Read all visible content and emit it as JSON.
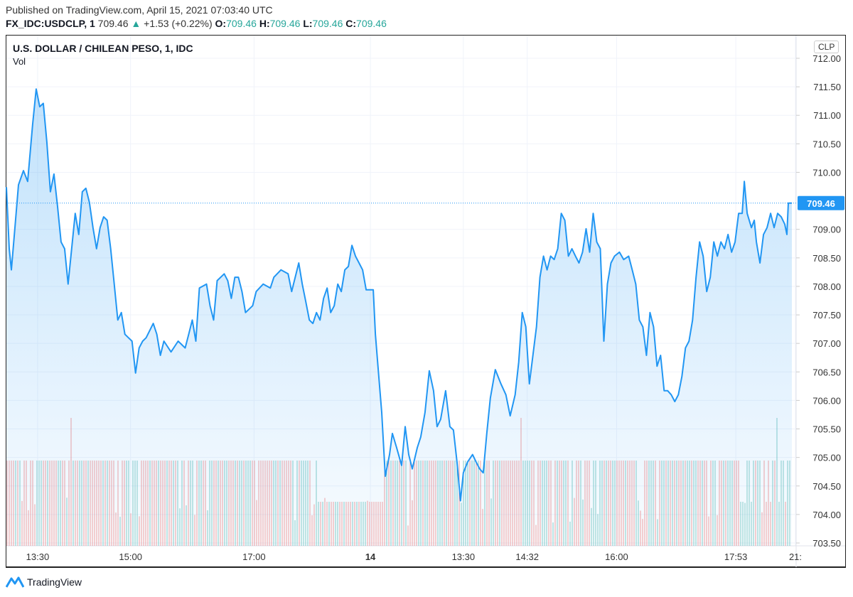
{
  "header": {
    "published": "Published on TradingView.com, April 15, 2021 07:03:40 UTC",
    "symbol": "FX_IDC:USDCLP, 1",
    "last": "709.46",
    "change": "+1.53 (+0.22%)",
    "o_label": "O:",
    "o": "709.46",
    "h_label": "H:",
    "h": "709.46",
    "l_label": "L:",
    "l": "709.46",
    "c_label": "C:",
    "c": "709.46"
  },
  "chart_title": "U.S. DOLLAR / CHILEAN PESO, 1, IDC",
  "volume_label": "Vol",
  "currency_button": "CLP",
  "footer_logo": "TradingView",
  "colors": {
    "line": "#2196f3",
    "up": "#26a69a",
    "down": "#ef5350",
    "grid": "#f0f3fa"
  },
  "chart_data": {
    "type": "area",
    "title": "U.S. DOLLAR / CHILEAN PESO, 1, IDC",
    "ylim": [
      703.5,
      712.0
    ],
    "y_ticks": [
      "712.00",
      "711.50",
      "711.00",
      "710.50",
      "710.00",
      "709.00",
      "708.50",
      "708.00",
      "707.50",
      "707.00",
      "706.50",
      "706.00",
      "705.50",
      "705.00",
      "704.50",
      "704.00",
      "703.50"
    ],
    "y_tick_values": [
      712,
      711.5,
      711,
      710.5,
      710,
      709,
      708.5,
      708,
      707.5,
      707,
      706.5,
      706,
      705.5,
      705,
      704.5,
      704,
      703.5
    ],
    "last_price_label": "709.46",
    "last_price": 709.46,
    "x_ticks": [
      {
        "label": "13:30",
        "t": 44,
        "bold": false
      },
      {
        "label": "15:00",
        "t": 175,
        "bold": false
      },
      {
        "label": "17:00",
        "t": 349,
        "bold": false
      },
      {
        "label": "14",
        "t": 513,
        "bold": true
      },
      {
        "label": "13:30",
        "t": 644,
        "bold": false
      },
      {
        "label": "14:32",
        "t": 734,
        "bold": false
      },
      {
        "label": "16:00",
        "t": 860,
        "bold": false
      },
      {
        "label": "17:53",
        "t": 1028,
        "bold": false
      },
      {
        "label": "21:",
        "t": 1112,
        "bold": false
      }
    ],
    "t_range": [
      0,
      1107
    ],
    "series": [
      {
        "name": "USDCLP",
        "points": [
          [
            0,
            709.74
          ],
          [
            4,
            708.66
          ],
          [
            7,
            708.29
          ],
          [
            12,
            709.03
          ],
          [
            17,
            709.78
          ],
          [
            24,
            710.03
          ],
          [
            30,
            709.84
          ],
          [
            37,
            710.84
          ],
          [
            42,
            711.46
          ],
          [
            47,
            711.15
          ],
          [
            52,
            711.21
          ],
          [
            57,
            710.53
          ],
          [
            62,
            709.66
          ],
          [
            67,
            709.97
          ],
          [
            72,
            709.41
          ],
          [
            77,
            708.78
          ],
          [
            82,
            708.66
          ],
          [
            87,
            708.04
          ],
          [
            92,
            708.66
          ],
          [
            97,
            709.28
          ],
          [
            102,
            708.91
          ],
          [
            107,
            709.66
          ],
          [
            112,
            709.72
          ],
          [
            117,
            709.47
          ],
          [
            122,
            709.03
          ],
          [
            127,
            708.66
          ],
          [
            132,
            709.03
          ],
          [
            137,
            709.22
          ],
          [
            142,
            709.16
          ],
          [
            147,
            708.66
          ],
          [
            152,
            708.04
          ],
          [
            157,
            707.41
          ],
          [
            162,
            707.54
          ],
          [
            167,
            707.16
          ],
          [
            172,
            707.1
          ],
          [
            177,
            707.04
          ],
          [
            182,
            706.48
          ],
          [
            187,
            706.92
          ],
          [
            192,
            707.04
          ],
          [
            197,
            707.1
          ],
          [
            207,
            707.35
          ],
          [
            212,
            707.16
          ],
          [
            217,
            706.79
          ],
          [
            222,
            707.04
          ],
          [
            232,
            706.85
          ],
          [
            242,
            707.04
          ],
          [
            252,
            706.92
          ],
          [
            257,
            707.16
          ],
          [
            262,
            707.41
          ],
          [
            267,
            707.04
          ],
          [
            272,
            707.97
          ],
          [
            282,
            708.04
          ],
          [
            287,
            707.66
          ],
          [
            292,
            707.41
          ],
          [
            297,
            708.1
          ],
          [
            307,
            708.22
          ],
          [
            312,
            708.1
          ],
          [
            317,
            707.79
          ],
          [
            322,
            708.16
          ],
          [
            327,
            708.16
          ],
          [
            332,
            707.91
          ],
          [
            337,
            707.54
          ],
          [
            347,
            707.66
          ],
          [
            352,
            707.91
          ],
          [
            362,
            708.04
          ],
          [
            372,
            707.97
          ],
          [
            377,
            708.16
          ],
          [
            387,
            708.29
          ],
          [
            397,
            708.22
          ],
          [
            402,
            707.91
          ],
          [
            412,
            708.41
          ],
          [
            417,
            708.04
          ],
          [
            422,
            707.73
          ],
          [
            427,
            707.41
          ],
          [
            432,
            707.35
          ],
          [
            437,
            707.54
          ],
          [
            442,
            707.41
          ],
          [
            447,
            707.79
          ],
          [
            452,
            707.97
          ],
          [
            457,
            707.54
          ],
          [
            462,
            707.66
          ],
          [
            467,
            708.04
          ],
          [
            472,
            707.91
          ],
          [
            477,
            708.29
          ],
          [
            482,
            708.35
          ],
          [
            487,
            708.72
          ],
          [
            492,
            708.53
          ],
          [
            497,
            708.41
          ],
          [
            502,
            708.29
          ],
          [
            507,
            707.94
          ],
          [
            517,
            707.94
          ],
          [
            520,
            707.16
          ],
          [
            524,
            706.54
          ],
          [
            529,
            705.79
          ],
          [
            534,
            704.67
          ],
          [
            540,
            705.05
          ],
          [
            544,
            705.42
          ],
          [
            550,
            705.17
          ],
          [
            557,
            704.86
          ],
          [
            562,
            705.54
          ],
          [
            567,
            705.05
          ],
          [
            572,
            704.8
          ],
          [
            579,
            705.17
          ],
          [
            584,
            705.36
          ],
          [
            590,
            705.79
          ],
          [
            596,
            706.52
          ],
          [
            602,
            706.17
          ],
          [
            607,
            705.54
          ],
          [
            612,
            705.67
          ],
          [
            619,
            706.17
          ],
          [
            625,
            705.54
          ],
          [
            630,
            705.48
          ],
          [
            635,
            704.92
          ],
          [
            640,
            704.24
          ],
          [
            644,
            704.73
          ],
          [
            650,
            704.92
          ],
          [
            657,
            705.05
          ],
          [
            662,
            704.92
          ],
          [
            667,
            704.8
          ],
          [
            672,
            704.73
          ],
          [
            677,
            705.42
          ],
          [
            682,
            706.04
          ],
          [
            689,
            706.54
          ],
          [
            697,
            706.29
          ],
          [
            704,
            706.1
          ],
          [
            710,
            705.73
          ],
          [
            717,
            706.1
          ],
          [
            722,
            706.67
          ],
          [
            727,
            707.54
          ],
          [
            732,
            707.29
          ],
          [
            737,
            706.29
          ],
          [
            742,
            706.79
          ],
          [
            747,
            707.29
          ],
          [
            752,
            708.16
          ],
          [
            757,
            708.53
          ],
          [
            762,
            708.29
          ],
          [
            767,
            708.53
          ],
          [
            772,
            708.47
          ],
          [
            777,
            708.66
          ],
          [
            782,
            709.28
          ],
          [
            787,
            709.16
          ],
          [
            792,
            708.53
          ],
          [
            797,
            708.66
          ],
          [
            802,
            708.53
          ],
          [
            807,
            708.41
          ],
          [
            812,
            708.6
          ],
          [
            817,
            709.01
          ],
          [
            822,
            708.6
          ],
          [
            827,
            709.28
          ],
          [
            832,
            708.78
          ],
          [
            837,
            708.66
          ],
          [
            842,
            707.04
          ],
          [
            847,
            708.04
          ],
          [
            852,
            708.41
          ],
          [
            857,
            708.53
          ],
          [
            864,
            708.6
          ],
          [
            870,
            708.47
          ],
          [
            877,
            708.53
          ],
          [
            882,
            708.29
          ],
          [
            887,
            708.04
          ],
          [
            892,
            707.41
          ],
          [
            897,
            707.29
          ],
          [
            902,
            706.79
          ],
          [
            907,
            707.54
          ],
          [
            912,
            707.29
          ],
          [
            917,
            706.6
          ],
          [
            922,
            706.79
          ],
          [
            927,
            706.17
          ],
          [
            932,
            706.17
          ],
          [
            937,
            706.1
          ],
          [
            942,
            705.98
          ],
          [
            947,
            706.1
          ],
          [
            952,
            706.42
          ],
          [
            957,
            706.92
          ],
          [
            962,
            707.04
          ],
          [
            967,
            707.41
          ],
          [
            972,
            708.16
          ],
          [
            977,
            708.78
          ],
          [
            982,
            708.53
          ],
          [
            987,
            707.91
          ],
          [
            992,
            708.16
          ],
          [
            997,
            708.78
          ],
          [
            1002,
            708.53
          ],
          [
            1007,
            708.78
          ],
          [
            1012,
            708.66
          ],
          [
            1017,
            708.91
          ],
          [
            1022,
            708.6
          ],
          [
            1027,
            708.78
          ],
          [
            1032,
            709.28
          ],
          [
            1037,
            709.28
          ],
          [
            1040,
            709.84
          ],
          [
            1044,
            709.28
          ],
          [
            1050,
            709.03
          ],
          [
            1054,
            709.16
          ],
          [
            1057,
            708.78
          ],
          [
            1062,
            708.41
          ],
          [
            1067,
            708.91
          ],
          [
            1072,
            709.03
          ],
          [
            1077,
            709.28
          ],
          [
            1082,
            709.03
          ],
          [
            1087,
            709.28
          ],
          [
            1092,
            709.22
          ],
          [
            1097,
            709.09
          ],
          [
            1100,
            708.91
          ],
          [
            1102,
            709.46
          ],
          [
            1107,
            709.46
          ]
        ]
      }
    ]
  }
}
